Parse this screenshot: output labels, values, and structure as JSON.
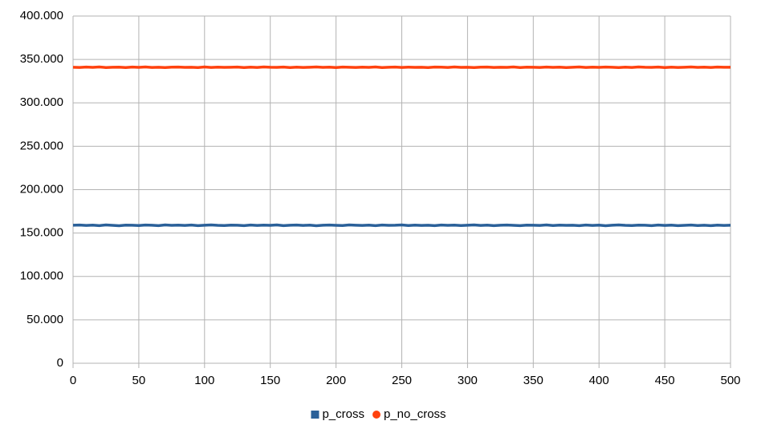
{
  "chart_data": {
    "type": "line",
    "x": [
      0,
      5,
      10,
      15,
      20,
      25,
      30,
      35,
      40,
      45,
      50,
      55,
      60,
      65,
      70,
      75,
      80,
      85,
      90,
      95,
      100,
      105,
      110,
      115,
      120,
      125,
      130,
      135,
      140,
      145,
      150,
      155,
      160,
      165,
      170,
      175,
      180,
      185,
      190,
      195,
      200,
      205,
      210,
      215,
      220,
      225,
      230,
      235,
      240,
      245,
      250,
      255,
      260,
      265,
      270,
      275,
      280,
      285,
      290,
      295,
      300,
      305,
      310,
      315,
      320,
      325,
      330,
      335,
      340,
      345,
      350,
      355,
      360,
      365,
      370,
      375,
      380,
      385,
      390,
      395,
      400,
      405,
      410,
      415,
      420,
      425,
      430,
      435,
      440,
      445,
      450,
      455,
      460,
      465,
      470,
      475,
      480,
      485,
      490,
      495,
      500
    ],
    "series": [
      {
        "name": "p_cross",
        "color": "#2a6099",
        "marker": "square",
        "values": [
          159000,
          159200,
          158800,
          159100,
          158600,
          159300,
          158900,
          158400,
          159100,
          159000,
          158700,
          159200,
          159000,
          158500,
          159300,
          158900,
          159100,
          158800,
          159200,
          158600,
          159000,
          159300,
          158900,
          158700,
          159100,
          159000,
          158500,
          159200,
          158800,
          159100,
          158900,
          159300,
          158600,
          159000,
          159200,
          158800,
          159100,
          158400,
          159000,
          159200,
          158900,
          158700,
          159300,
          159000,
          158800,
          159100,
          158600,
          159200,
          158900,
          159000,
          159300,
          158700,
          159100,
          158800,
          159000,
          158500,
          159200,
          158900,
          159100,
          158700,
          159000,
          159300,
          158800,
          159100,
          158600,
          159000,
          159200,
          158900,
          158500,
          159100,
          159000,
          158800,
          159300,
          158700,
          159100,
          158900,
          159000,
          158600,
          159200,
          158800,
          159100,
          158400,
          159000,
          159300,
          158900,
          158700,
          159100,
          159000,
          158500,
          159200,
          158800,
          159100,
          158600,
          158900,
          159200,
          158700,
          159000,
          158500,
          159100,
          158800,
          159000
        ]
      },
      {
        "name": "p_no_cross",
        "color": "#ff420e",
        "marker": "circle",
        "values": [
          341000,
          340800,
          341200,
          340900,
          341300,
          340700,
          341000,
          341100,
          340600,
          341200,
          340900,
          341300,
          340800,
          341000,
          340700,
          341100,
          341200,
          340900,
          341000,
          340600,
          341300,
          340800,
          341100,
          340900,
          341000,
          341200,
          340700,
          341100,
          340800,
          341300,
          341000,
          340900,
          341200,
          340600,
          341100,
          340800,
          341000,
          341300,
          340900,
          341100,
          340700,
          341200,
          341000,
          340800,
          341100,
          340900,
          341300,
          340700,
          341000,
          341200,
          340800,
          341100,
          340900,
          341000,
          340600,
          341200,
          341100,
          340800,
          341300,
          340900,
          341000,
          340700,
          341100,
          341200,
          340800,
          341000,
          340900,
          341300,
          340700,
          341100,
          341000,
          340800,
          341200,
          340900,
          341100,
          340600,
          341000,
          341300,
          340800,
          341100,
          340900,
          341200,
          341000,
          340700,
          341100,
          340800,
          341300,
          341000,
          340900,
          341200,
          340700,
          341100,
          340800,
          341000,
          341300,
          340900,
          341100,
          340800,
          341200,
          341000,
          341000
        ]
      }
    ],
    "xlim": [
      0,
      500
    ],
    "xticks": [
      0,
      50,
      100,
      150,
      200,
      250,
      300,
      350,
      400,
      450,
      500
    ],
    "ylim": [
      0,
      400000
    ],
    "yticks": [
      0,
      {
        "value": 50000,
        "label": "50.000"
      },
      {
        "value": 100000,
        "label": "100.000"
      },
      {
        "value": 150000,
        "label": "150.000"
      },
      {
        "value": 200000,
        "label": "200.000"
      },
      {
        "value": 250000,
        "label": "250.000"
      },
      {
        "value": 300000,
        "label": "300.000"
      },
      {
        "value": 350000,
        "label": "350.000"
      },
      {
        "value": 400000,
        "label": "400.000"
      }
    ],
    "grid": true,
    "legend": "bottom"
  }
}
